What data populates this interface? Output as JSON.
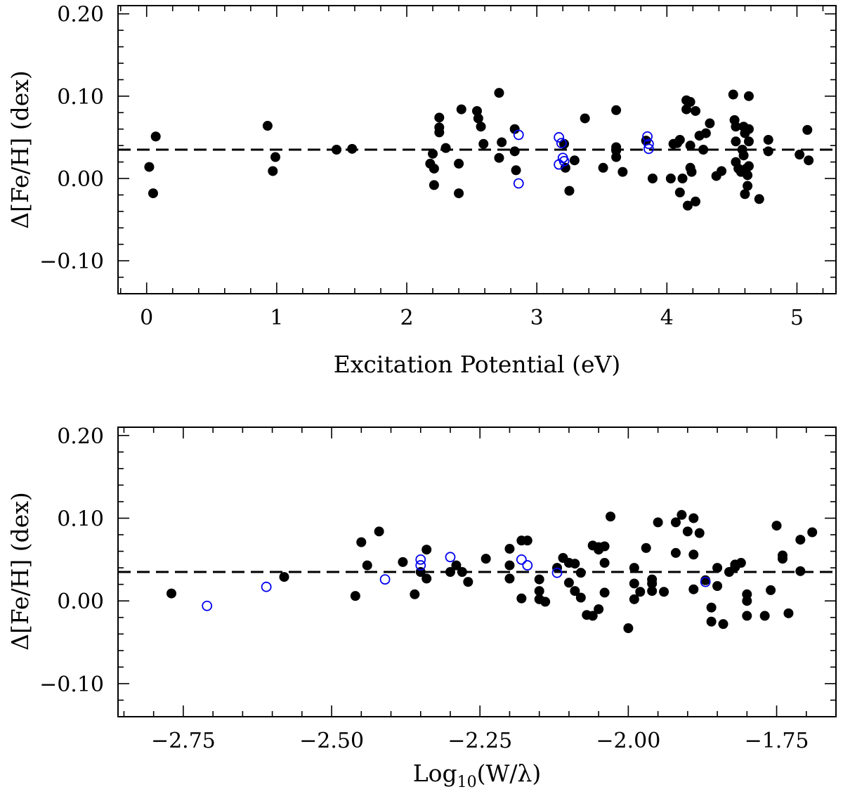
{
  "chart_data": [
    {
      "type": "scatter",
      "xlabel": "Excitation Potential (eV)",
      "ylabel": "Δ[Fe/H] (dex)",
      "xlim": [
        -0.22,
        5.3
      ],
      "ylim": [
        -0.14,
        0.21
      ],
      "x_ticks": [
        0,
        1,
        2,
        3,
        4,
        5
      ],
      "x_tick_labels": [
        "0",
        "1",
        "2",
        "3",
        "4",
        "5"
      ],
      "y_ticks": [
        -0.1,
        0.0,
        0.1,
        0.2
      ],
      "y_tick_labels": [
        "−0.10",
        "0.00",
        "0.10",
        "0.20"
      ],
      "reference_line": 0.035,
      "series": [
        {
          "marker": "filled-circle",
          "color": "#000000",
          "points": [
            [
              0.02,
              0.014
            ],
            [
              0.05,
              -0.018
            ],
            [
              0.07,
              0.051
            ],
            [
              0.93,
              0.064
            ],
            [
              0.97,
              0.009
            ],
            [
              0.99,
              0.026
            ],
            [
              1.46,
              0.035
            ],
            [
              1.58,
              0.036
            ],
            [
              2.18,
              0.018
            ],
            [
              2.2,
              0.03
            ],
            [
              2.21,
              0.012
            ],
            [
              2.21,
              -0.008
            ],
            [
              2.25,
              0.074
            ],
            [
              2.25,
              0.062
            ],
            [
              2.25,
              0.056
            ],
            [
              2.3,
              0.037
            ],
            [
              2.4,
              -0.018
            ],
            [
              2.4,
              0.018
            ],
            [
              2.42,
              0.084
            ],
            [
              2.54,
              0.082
            ],
            [
              2.55,
              0.073
            ],
            [
              2.57,
              0.063
            ],
            [
              2.59,
              0.042
            ],
            [
              2.71,
              0.104
            ],
            [
              2.71,
              0.025
            ],
            [
              2.73,
              0.044
            ],
            [
              2.83,
              0.06
            ],
            [
              2.83,
              0.033
            ],
            [
              2.84,
              0.01
            ],
            [
              3.21,
              0.042
            ],
            [
              3.22,
              0.013
            ],
            [
              3.25,
              -0.015
            ],
            [
              3.29,
              0.022
            ],
            [
              3.37,
              0.073
            ],
            [
              3.51,
              0.013
            ],
            [
              3.61,
              0.083
            ],
            [
              3.61,
              0.038
            ],
            [
              3.61,
              0.034
            ],
            [
              3.61,
              0.026
            ],
            [
              3.66,
              0.008
            ],
            [
              3.84,
              0.046
            ],
            [
              3.89,
              0.0
            ],
            [
              4.03,
              0.0
            ],
            [
              4.05,
              0.042
            ],
            [
              4.08,
              0.043
            ],
            [
              4.1,
              0.047
            ],
            [
              4.1,
              -0.017
            ],
            [
              4.12,
              0.0
            ],
            [
              4.15,
              0.095
            ],
            [
              4.15,
              0.084
            ],
            [
              4.16,
              -0.033
            ],
            [
              4.18,
              0.093
            ],
            [
              4.18,
              0.04
            ],
            [
              4.18,
              0.013
            ],
            [
              4.19,
              0.008
            ],
            [
              4.22,
              0.082
            ],
            [
              4.22,
              -0.028
            ],
            [
              4.25,
              0.052
            ],
            [
              4.28,
              0.035
            ],
            [
              4.3,
              0.055
            ],
            [
              4.33,
              0.067
            ],
            [
              4.38,
              0.003
            ],
            [
              4.42,
              0.009
            ],
            [
              4.51,
              0.102
            ],
            [
              4.52,
              0.071
            ],
            [
              4.53,
              0.063
            ],
            [
              4.53,
              0.045
            ],
            [
              4.53,
              0.02
            ],
            [
              4.55,
              0.012
            ],
            [
              4.57,
              0.008
            ],
            [
              4.59,
              0.063
            ],
            [
              4.6,
              0.055
            ],
            [
              4.58,
              0.035
            ],
            [
              4.59,
              0.028
            ],
            [
              4.6,
              -0.019
            ],
            [
              4.61,
              0.012
            ],
            [
              4.62,
              0.004
            ],
            [
              4.62,
              -0.009
            ],
            [
              4.63,
              0.1
            ],
            [
              4.63,
              0.06
            ],
            [
              4.63,
              0.045
            ],
            [
              4.63,
              0.015
            ],
            [
              4.71,
              -0.025
            ],
            [
              4.78,
              0.047
            ],
            [
              4.78,
              0.033
            ],
            [
              5.02,
              0.029
            ],
            [
              5.08,
              0.059
            ],
            [
              5.09,
              0.022
            ]
          ]
        },
        {
          "marker": "open-circle",
          "color": "#0000ee",
          "points": [
            [
              2.86,
              0.053
            ],
            [
              2.86,
              -0.006
            ],
            [
              3.17,
              0.05
            ],
            [
              3.17,
              0.017
            ],
            [
              3.19,
              0.043
            ],
            [
              3.2,
              0.025
            ],
            [
              3.21,
              0.021
            ],
            [
              3.85,
              0.051
            ],
            [
              3.86,
              0.042
            ],
            [
              3.86,
              0.036
            ]
          ]
        }
      ]
    },
    {
      "type": "scatter",
      "xlabel": "Log10(W/λ)",
      "ylabel": "Δ[Fe/H] (dex)",
      "xlim": [
        -2.86,
        -1.65
      ],
      "ylim": [
        -0.14,
        0.21
      ],
      "x_ticks": [
        -2.75,
        -2.5,
        -2.25,
        -2.0,
        -1.75
      ],
      "x_tick_labels": [
        "−2.75",
        "−2.50",
        "−2.25",
        "−2.00",
        "−1.75"
      ],
      "y_ticks": [
        -0.1,
        0.0,
        0.1,
        0.2
      ],
      "y_tick_labels": [
        "−0.10",
        "0.00",
        "0.10",
        "0.20"
      ],
      "reference_line": 0.035,
      "series": [
        {
          "marker": "filled-circle",
          "color": "#000000",
          "points": [
            [
              -2.77,
              0.009
            ],
            [
              -2.58,
              0.029
            ],
            [
              -2.46,
              0.006
            ],
            [
              -2.45,
              0.071
            ],
            [
              -2.44,
              0.043
            ],
            [
              -2.42,
              0.084
            ],
            [
              -2.38,
              0.047
            ],
            [
              -2.36,
              0.008
            ],
            [
              -2.35,
              0.035
            ],
            [
              -2.34,
              0.062
            ],
            [
              -2.34,
              0.027
            ],
            [
              -2.3,
              0.035
            ],
            [
              -2.29,
              0.043
            ],
            [
              -2.28,
              0.035
            ],
            [
              -2.27,
              0.023
            ],
            [
              -2.24,
              0.051
            ],
            [
              -2.2,
              0.063
            ],
            [
              -2.2,
              0.027
            ],
            [
              -2.2,
              0.043
            ],
            [
              -2.18,
              0.073
            ],
            [
              -2.17,
              0.073
            ],
            [
              -2.18,
              0.003
            ],
            [
              -2.15,
              0.026
            ],
            [
              -2.15,
              0.012
            ],
            [
              -2.15,
              0.002
            ],
            [
              -2.14,
              -0.001
            ],
            [
              -2.12,
              0.04
            ],
            [
              -2.11,
              0.052
            ],
            [
              -2.1,
              0.046
            ],
            [
              -2.1,
              0.022
            ],
            [
              -2.09,
              0.045
            ],
            [
              -2.09,
              0.012
            ],
            [
              -2.08,
              0.034
            ],
            [
              -2.08,
              0.004
            ],
            [
              -2.07,
              -0.017
            ],
            [
              -2.06,
              0.067
            ],
            [
              -2.06,
              -0.018
            ],
            [
              -2.05,
              0.065
            ],
            [
              -2.05,
              0.062
            ],
            [
              -2.04,
              0.01
            ],
            [
              -2.05,
              -0.01
            ],
            [
              -2.04,
              0.066
            ],
            [
              -2.04,
              0.046
            ],
            [
              -2.03,
              0.102
            ],
            [
              -2.0,
              -0.033
            ],
            [
              -1.99,
              0.04
            ],
            [
              -1.99,
              0.021
            ],
            [
              -1.99,
              0.002
            ],
            [
              -1.98,
              0.011
            ],
            [
              -1.97,
              0.064
            ],
            [
              -1.96,
              0.026
            ],
            [
              -1.96,
              0.021
            ],
            [
              -1.96,
              0.012
            ],
            [
              -1.95,
              0.095
            ],
            [
              -1.94,
              0.011
            ],
            [
              -1.92,
              0.058
            ],
            [
              -1.92,
              0.095
            ],
            [
              -1.91,
              0.104
            ],
            [
              -1.9,
              0.084
            ],
            [
              -1.89,
              0.014
            ],
            [
              -1.89,
              0.1
            ],
            [
              -1.89,
              0.056
            ],
            [
              -1.88,
              0.082
            ],
            [
              -1.87,
              0.025
            ],
            [
              -1.86,
              -0.008
            ],
            [
              -1.86,
              -0.025
            ],
            [
              -1.85,
              0.018
            ],
            [
              -1.85,
              0.04
            ],
            [
              -1.84,
              -0.028
            ],
            [
              -1.83,
              0.035
            ],
            [
              -1.82,
              0.041
            ],
            [
              -1.82,
              0.044
            ],
            [
              -1.81,
              0.046
            ],
            [
              -1.8,
              0.0
            ],
            [
              -1.8,
              0.008
            ],
            [
              -1.8,
              -0.018
            ],
            [
              -1.77,
              -0.018
            ],
            [
              -1.76,
              0.013
            ],
            [
              -1.75,
              0.091
            ],
            [
              -1.74,
              0.055
            ],
            [
              -1.74,
              0.051
            ],
            [
              -1.73,
              -0.015
            ],
            [
              -1.71,
              0.036
            ],
            [
              -1.71,
              0.074
            ],
            [
              -1.69,
              0.083
            ]
          ]
        },
        {
          "marker": "open-circle",
          "color": "#0000ee",
          "points": [
            [
              -2.71,
              -0.006
            ],
            [
              -2.61,
              0.017
            ],
            [
              -2.41,
              0.026
            ],
            [
              -2.35,
              0.05
            ],
            [
              -2.35,
              0.043
            ],
            [
              -2.3,
              0.053
            ],
            [
              -2.18,
              0.05
            ],
            [
              -2.17,
              0.043
            ],
            [
              -2.12,
              0.034
            ],
            [
              -1.87,
              0.023
            ]
          ]
        }
      ]
    }
  ]
}
